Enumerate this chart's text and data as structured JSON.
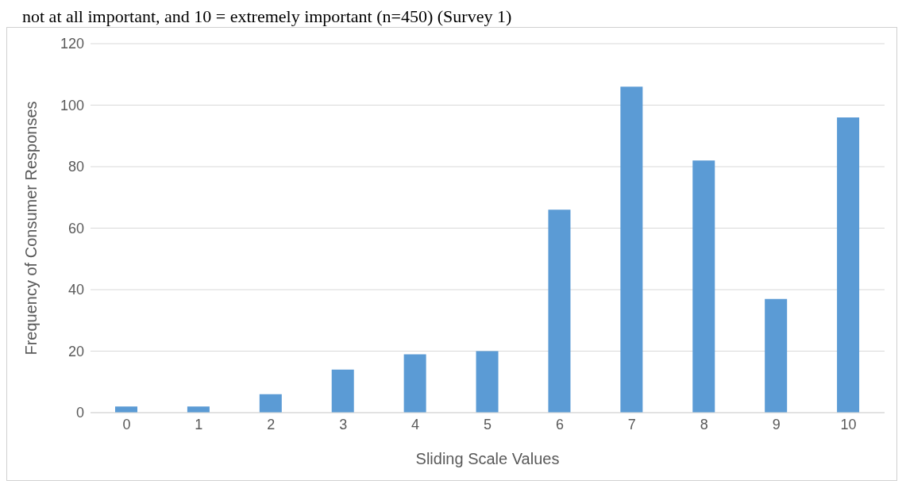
{
  "chart_data": {
    "type": "bar",
    "title": "not at all important, and 10 = extremely important (n=450) (Survey 1)",
    "xlabel": "Sliding Scale Values",
    "ylabel": "Frequency of Consumer Responses",
    "categories": [
      "0",
      "1",
      "2",
      "3",
      "4",
      "5",
      "6",
      "7",
      "8",
      "9",
      "10"
    ],
    "values": [
      2,
      2,
      6,
      14,
      19,
      20,
      66,
      106,
      82,
      37,
      96
    ],
    "color": "#5b9bd5",
    "ylim": [
      0,
      120
    ],
    "yticks": [
      0,
      20,
      40,
      60,
      80,
      100,
      120
    ],
    "grid": "y"
  }
}
